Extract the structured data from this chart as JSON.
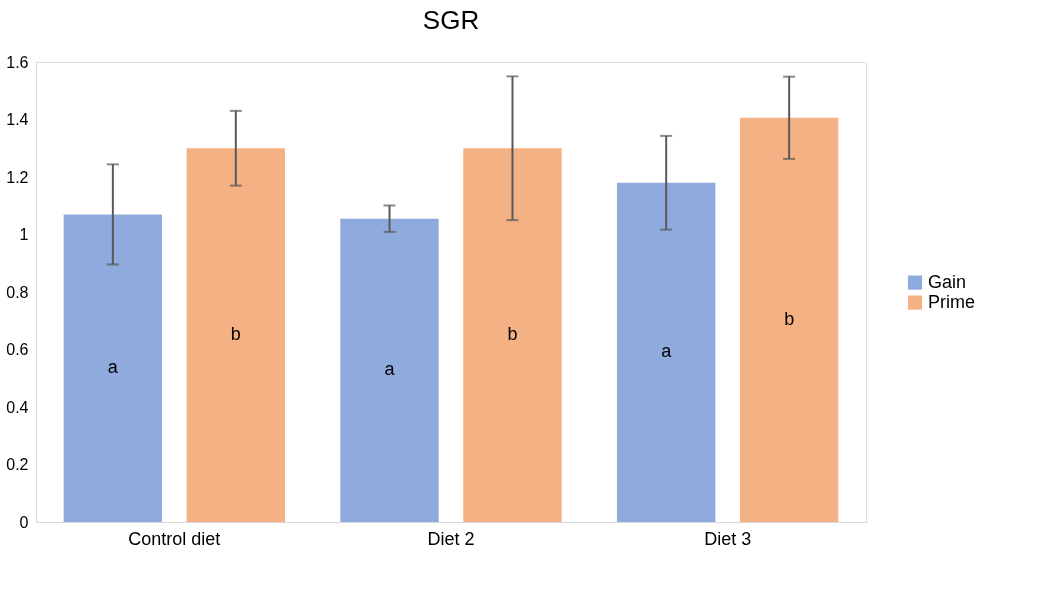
{
  "chart_data": {
    "type": "bar",
    "title": "SGR",
    "categories": [
      "Control diet",
      "Diet 2",
      "Diet 3"
    ],
    "series": [
      {
        "name": "Gain",
        "color": "#8faadc",
        "values": [
          1.07,
          1.055,
          1.18
        ],
        "errors": [
          0.174,
          0.046,
          0.163
        ]
      },
      {
        "name": "Prime",
        "color": "#f4b183",
        "values": [
          1.3,
          1.3,
          1.406
        ],
        "errors": [
          0.13,
          0.25,
          0.143
        ]
      }
    ],
    "ylim": [
      0,
      1.6
    ],
    "yticks": [
      0,
      0.2,
      0.4,
      0.6,
      0.8,
      1,
      1.2,
      1.4,
      1.6
    ],
    "grid": false,
    "legend": "right",
    "annotations": [
      "a",
      "b",
      "a",
      "b",
      "a",
      "b"
    ]
  }
}
